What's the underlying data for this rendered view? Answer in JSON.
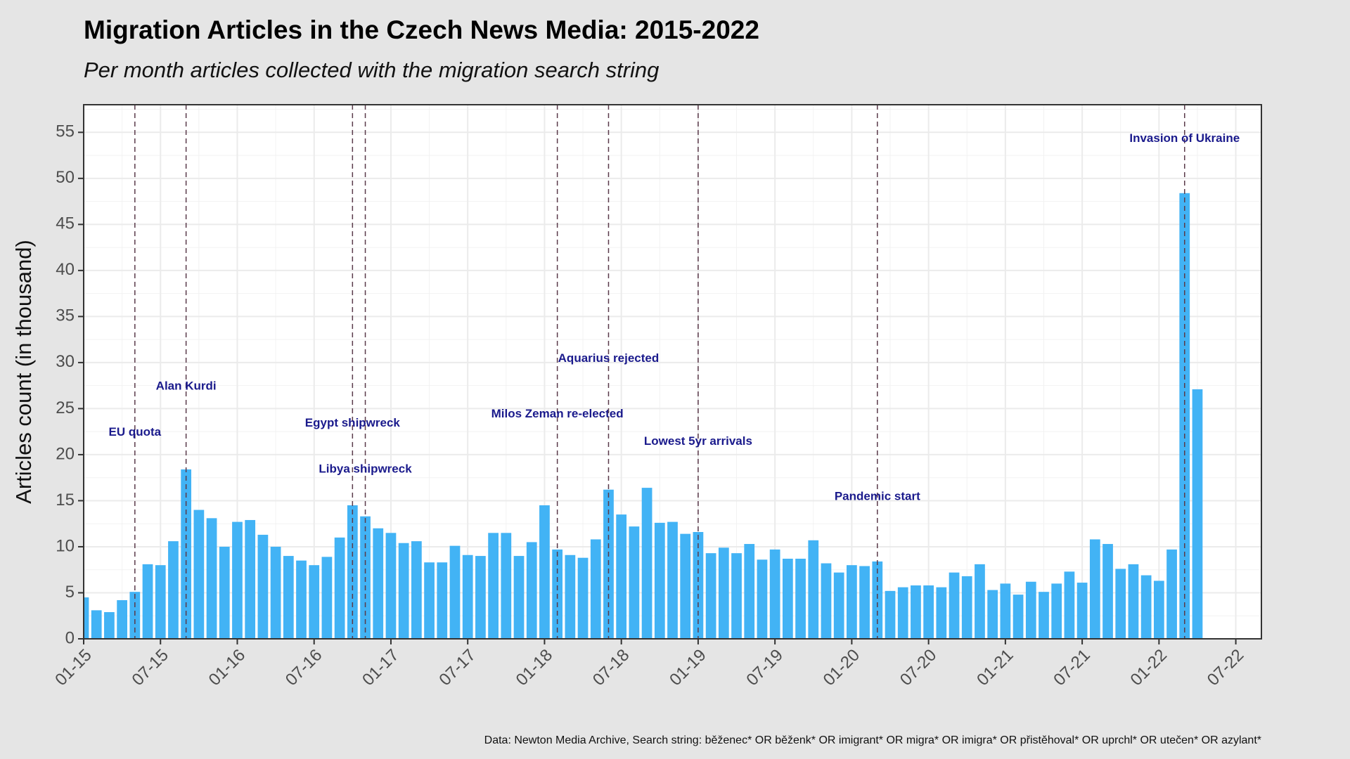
{
  "chart_data": {
    "type": "bar",
    "title": "Migration Articles in the Czech News Media: 2015-2022",
    "subtitle": "Per month articles collected with the migration search string",
    "y_label": "Articles count (in thousand)",
    "caption": "Data: Newton Media Archive, Search string: běženec* OR běženk* OR imigrant* OR migra* OR imigra* OR přistěhoval* OR uprchl* OR utečen* OR azylant*",
    "color": "#42b3f5",
    "grid": true,
    "x": [
      "01-15",
      "02-15",
      "03-15",
      "04-15",
      "05-15",
      "06-15",
      "07-15",
      "08-15",
      "09-15",
      "10-15",
      "11-15",
      "12-15",
      "01-16",
      "02-16",
      "03-16",
      "04-16",
      "05-16",
      "06-16",
      "07-16",
      "08-16",
      "09-16",
      "10-16",
      "11-16",
      "12-16",
      "01-17",
      "02-17",
      "03-17",
      "04-17",
      "05-17",
      "06-17",
      "07-17",
      "08-17",
      "09-17",
      "10-17",
      "11-17",
      "12-17",
      "01-18",
      "02-18",
      "03-18",
      "04-18",
      "05-18",
      "06-18",
      "07-18",
      "08-18",
      "09-18",
      "10-18",
      "11-18",
      "12-18",
      "01-19",
      "02-19",
      "03-19",
      "04-19",
      "05-19",
      "06-19",
      "07-19",
      "08-19",
      "09-19",
      "10-19",
      "11-19",
      "12-19",
      "01-20",
      "02-20",
      "03-20",
      "04-20",
      "05-20",
      "06-20",
      "07-20",
      "08-20",
      "09-20",
      "10-20",
      "11-20",
      "12-20",
      "01-21",
      "02-21",
      "03-21",
      "04-21",
      "05-21",
      "06-21",
      "07-21",
      "08-21",
      "09-21",
      "10-21",
      "11-21",
      "12-21",
      "01-22",
      "02-22",
      "03-22",
      "04-22"
    ],
    "values": [
      4.5,
      3.1,
      2.9,
      4.2,
      5.1,
      8.1,
      8.0,
      10.6,
      18.4,
      14.0,
      13.1,
      10.0,
      12.7,
      12.9,
      11.3,
      10.0,
      9.0,
      8.5,
      8.0,
      8.9,
      11.0,
      14.5,
      13.3,
      12.0,
      11.5,
      10.4,
      10.6,
      8.3,
      8.3,
      10.1,
      9.1,
      9.0,
      11.5,
      11.5,
      9.0,
      10.5,
      14.5,
      9.7,
      9.1,
      8.8,
      10.8,
      16.2,
      13.5,
      12.2,
      16.4,
      12.6,
      12.7,
      11.4,
      11.6,
      9.3,
      9.9,
      9.3,
      10.3,
      8.6,
      9.7,
      8.7,
      8.7,
      10.7,
      8.2,
      7.2,
      8.0,
      7.9,
      8.4,
      5.2,
      5.6,
      5.8,
      5.8,
      5.6,
      7.2,
      6.8,
      8.1,
      5.3,
      6.0,
      4.8,
      6.2,
      5.1,
      6.0,
      7.3,
      6.1,
      10.8,
      10.3,
      7.6,
      8.1,
      6.9,
      6.3,
      9.7,
      48.4,
      27.1
    ],
    "xlim": [
      "01-15",
      "09-22"
    ],
    "xticks": [
      "01-15",
      "07-15",
      "01-16",
      "07-16",
      "01-17",
      "07-17",
      "01-18",
      "07-18",
      "01-19",
      "07-19",
      "01-20",
      "07-20",
      "01-21",
      "07-21",
      "01-22",
      "07-22"
    ],
    "ylim": [
      0,
      58
    ],
    "yticks": [
      0,
      5,
      10,
      15,
      20,
      25,
      30,
      35,
      40,
      45,
      50,
      55
    ],
    "annotations": [
      {
        "label": "EU quota",
        "x": "05-15",
        "y": 22.4
      },
      {
        "label": "Alan Kurdi",
        "x": "09-15",
        "y": 27.4
      },
      {
        "label": "Egypt shipwreck",
        "x": "10-16",
        "y": 23.4
      },
      {
        "label": "Libya shipwreck",
        "x": "11-16",
        "y": 18.4
      },
      {
        "label": "Milos Zeman re-elected",
        "x": "02-18",
        "y": 24.4
      },
      {
        "label": "Aquarius rejected",
        "x": "06-18",
        "y": 30.4
      },
      {
        "label": "Lowest 5yr arrivals",
        "x": "01-19",
        "y": 21.4
      },
      {
        "label": "Pandemic start",
        "x": "03-20",
        "y": 15.4
      },
      {
        "label": "Invasion of Ukraine",
        "x": "03-22",
        "y": 54.3
      }
    ]
  }
}
